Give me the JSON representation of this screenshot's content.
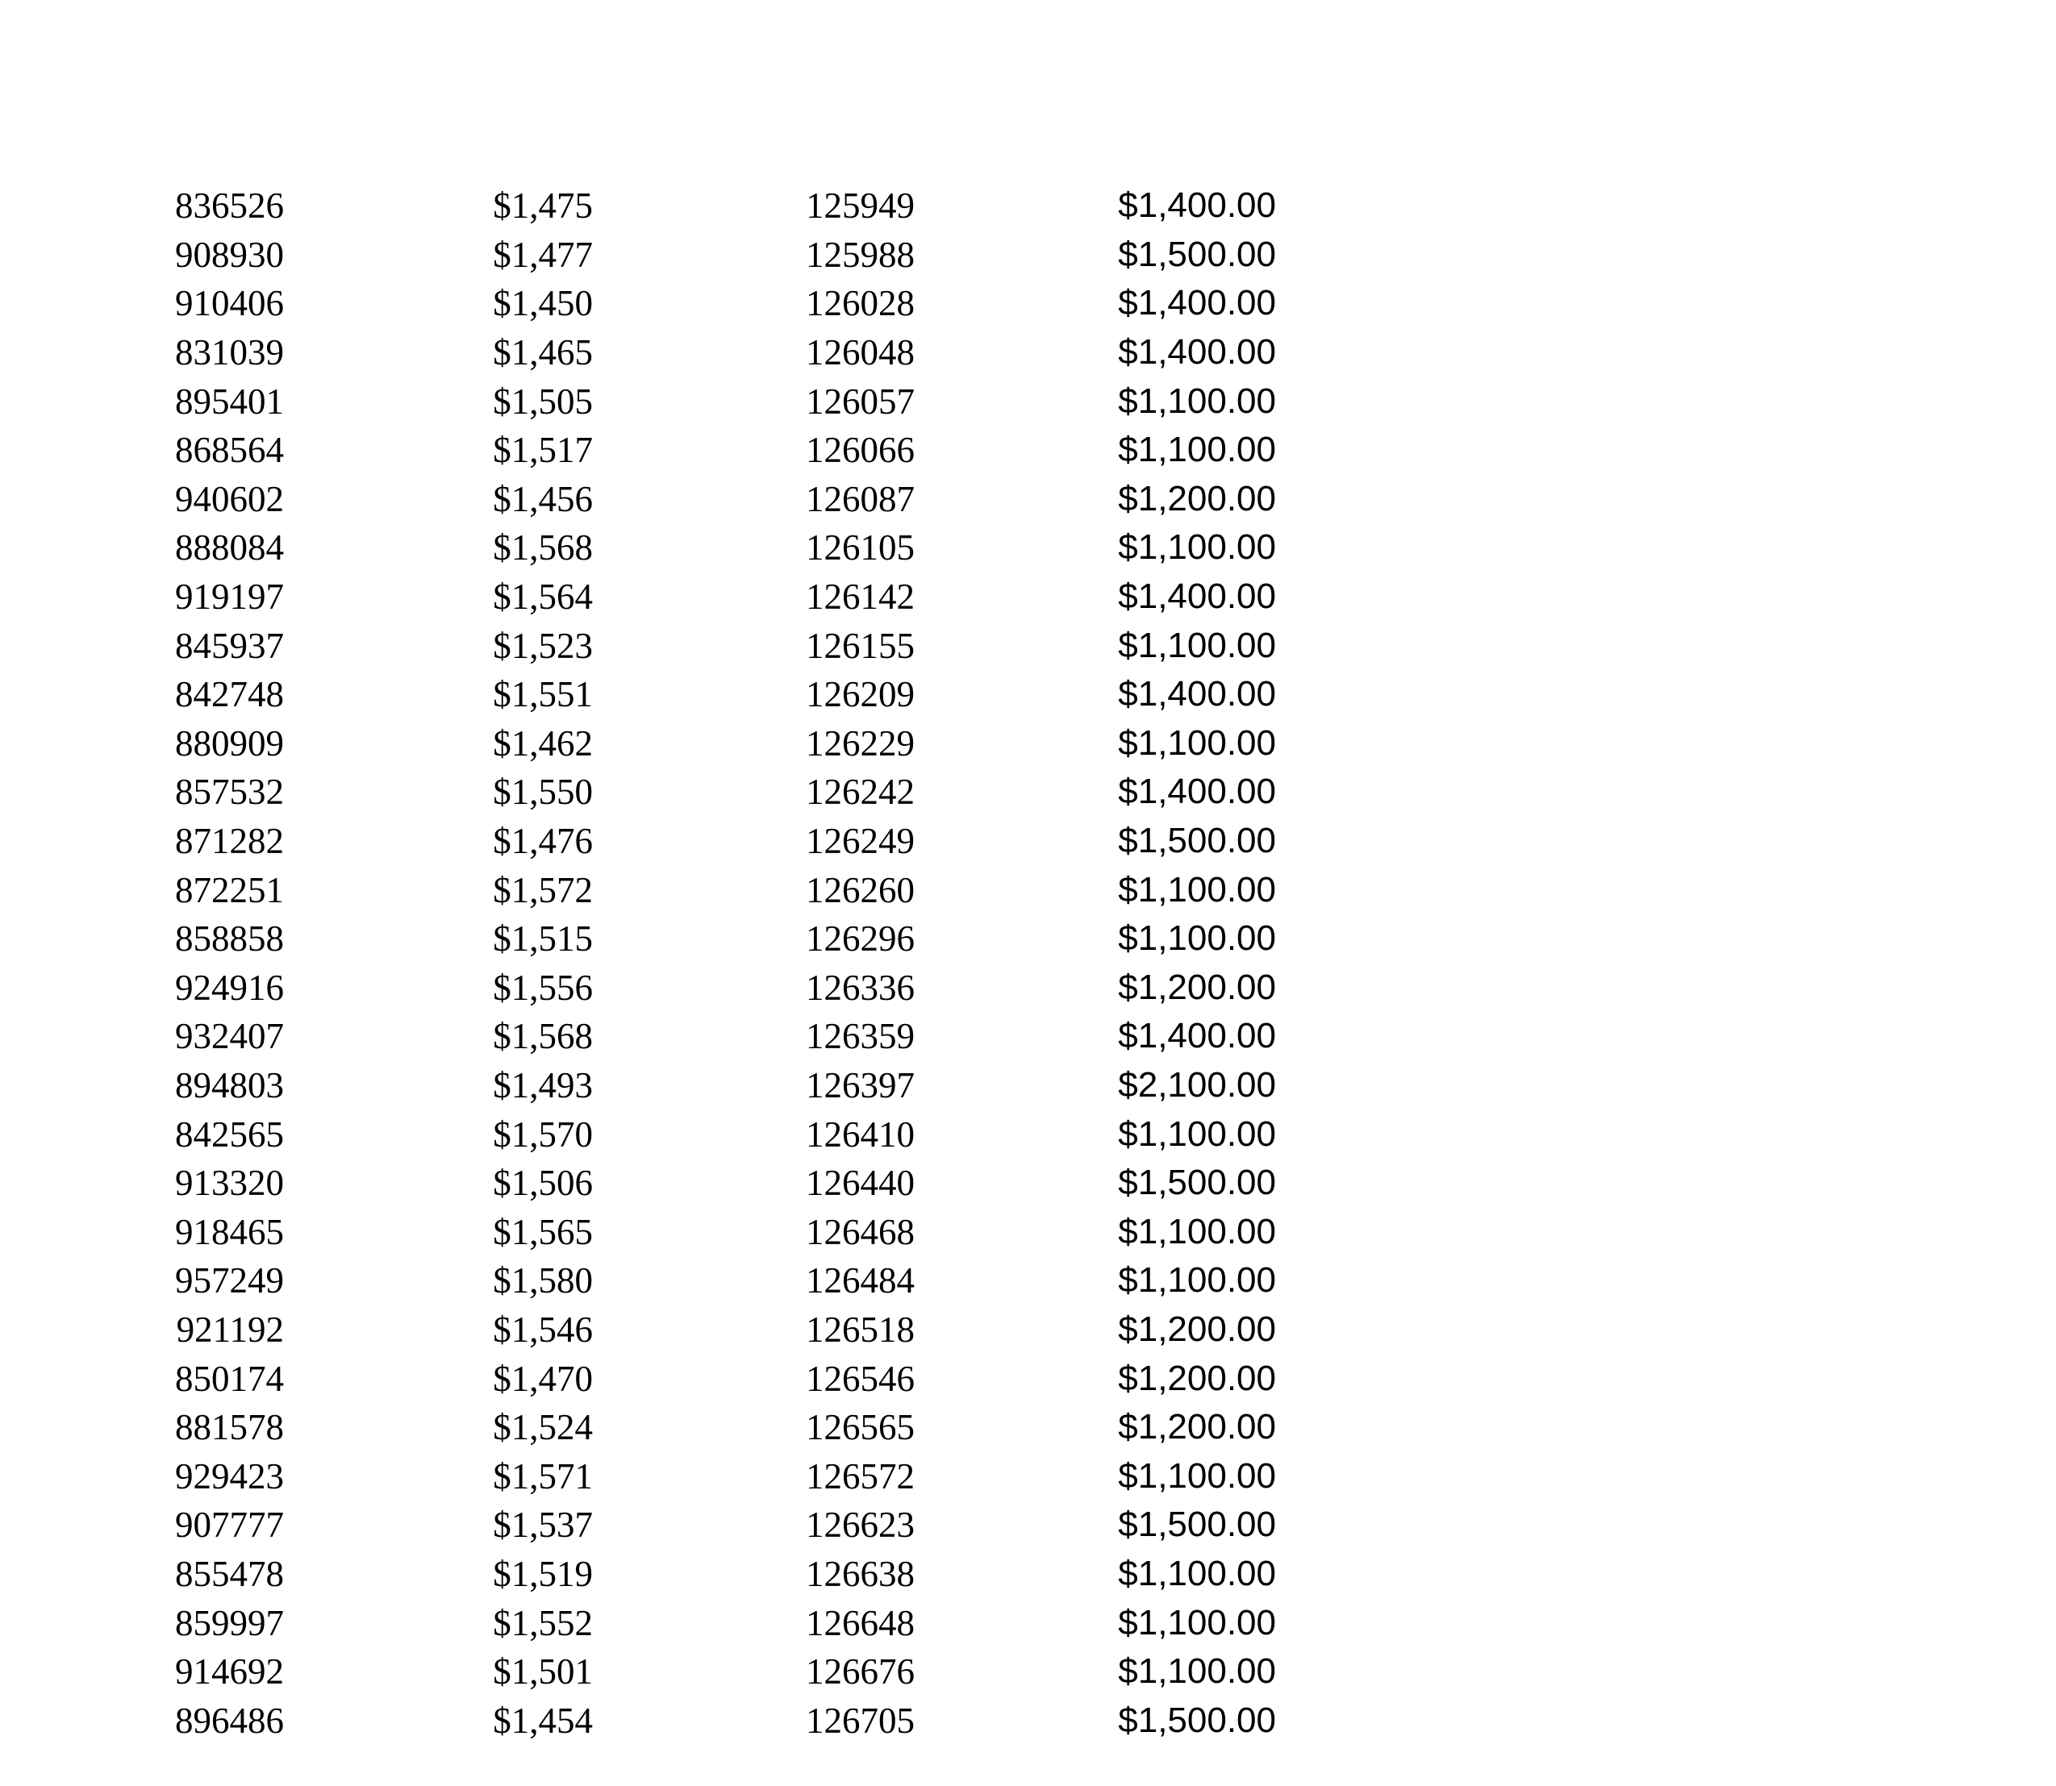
{
  "page": {
    "background_color": "#ffffff",
    "text_color": "#000000"
  },
  "table": {
    "columns": [
      {
        "name": "id-a",
        "style": "serif-number"
      },
      {
        "name": "amount-a",
        "style": "serif-currency"
      },
      {
        "name": "id-b",
        "style": "serif-number"
      },
      {
        "name": "amount-b",
        "style": "sans-currency-decimal"
      }
    ],
    "rows": [
      {
        "c1": "836526",
        "c2": "$1,475",
        "c3": "125949",
        "c4": "$1,400.00"
      },
      {
        "c1": "908930",
        "c2": "$1,477",
        "c3": "125988",
        "c4": "$1,500.00"
      },
      {
        "c1": "910406",
        "c2": "$1,450",
        "c3": "126028",
        "c4": "$1,400.00"
      },
      {
        "c1": "831039",
        "c2": "$1,465",
        "c3": "126048",
        "c4": "$1,400.00"
      },
      {
        "c1": "895401",
        "c2": "$1,505",
        "c3": "126057",
        "c4": "$1,100.00"
      },
      {
        "c1": "868564",
        "c2": "$1,517",
        "c3": "126066",
        "c4": "$1,100.00"
      },
      {
        "c1": "940602",
        "c2": "$1,456",
        "c3": "126087",
        "c4": "$1,200.00"
      },
      {
        "c1": "888084",
        "c2": "$1,568",
        "c3": "126105",
        "c4": "$1,100.00"
      },
      {
        "c1": "919197",
        "c2": "$1,564",
        "c3": "126142",
        "c4": "$1,400.00"
      },
      {
        "c1": "845937",
        "c2": "$1,523",
        "c3": "126155",
        "c4": "$1,100.00"
      },
      {
        "c1": "842748",
        "c2": "$1,551",
        "c3": "126209",
        "c4": "$1,400.00"
      },
      {
        "c1": "880909",
        "c2": "$1,462",
        "c3": "126229",
        "c4": "$1,100.00"
      },
      {
        "c1": "857532",
        "c2": "$1,550",
        "c3": "126242",
        "c4": "$1,400.00"
      },
      {
        "c1": "871282",
        "c2": "$1,476",
        "c3": "126249",
        "c4": "$1,500.00"
      },
      {
        "c1": "872251",
        "c2": "$1,572",
        "c3": "126260",
        "c4": "$1,100.00"
      },
      {
        "c1": "858858",
        "c2": "$1,515",
        "c3": "126296",
        "c4": "$1,100.00"
      },
      {
        "c1": "924916",
        "c2": "$1,556",
        "c3": "126336",
        "c4": "$1,200.00"
      },
      {
        "c1": "932407",
        "c2": "$1,568",
        "c3": "126359",
        "c4": "$1,400.00"
      },
      {
        "c1": "894803",
        "c2": "$1,493",
        "c3": "126397",
        "c4": "$2,100.00"
      },
      {
        "c1": "842565",
        "c2": "$1,570",
        "c3": "126410",
        "c4": "$1,100.00"
      },
      {
        "c1": "913320",
        "c2": "$1,506",
        "c3": "126440",
        "c4": "$1,500.00"
      },
      {
        "c1": "918465",
        "c2": "$1,565",
        "c3": "126468",
        "c4": "$1,100.00"
      },
      {
        "c1": "957249",
        "c2": "$1,580",
        "c3": "126484",
        "c4": "$1,100.00"
      },
      {
        "c1": "921192",
        "c2": "$1,546",
        "c3": "126518",
        "c4": "$1,200.00"
      },
      {
        "c1": "850174",
        "c2": "$1,470",
        "c3": "126546",
        "c4": "$1,200.00"
      },
      {
        "c1": "881578",
        "c2": "$1,524",
        "c3": "126565",
        "c4": "$1,200.00"
      },
      {
        "c1": "929423",
        "c2": "$1,571",
        "c3": "126572",
        "c4": "$1,100.00"
      },
      {
        "c1": "907777",
        "c2": "$1,537",
        "c3": "126623",
        "c4": "$1,500.00"
      },
      {
        "c1": "855478",
        "c2": "$1,519",
        "c3": "126638",
        "c4": "$1,100.00"
      },
      {
        "c1": "859997",
        "c2": "$1,552",
        "c3": "126648",
        "c4": "$1,100.00"
      },
      {
        "c1": "914692",
        "c2": "$1,501",
        "c3": "126676",
        "c4": "$1,100.00"
      },
      {
        "c1": "896486",
        "c2": "$1,454",
        "c3": "126705",
        "c4": "$1,500.00"
      }
    ]
  }
}
